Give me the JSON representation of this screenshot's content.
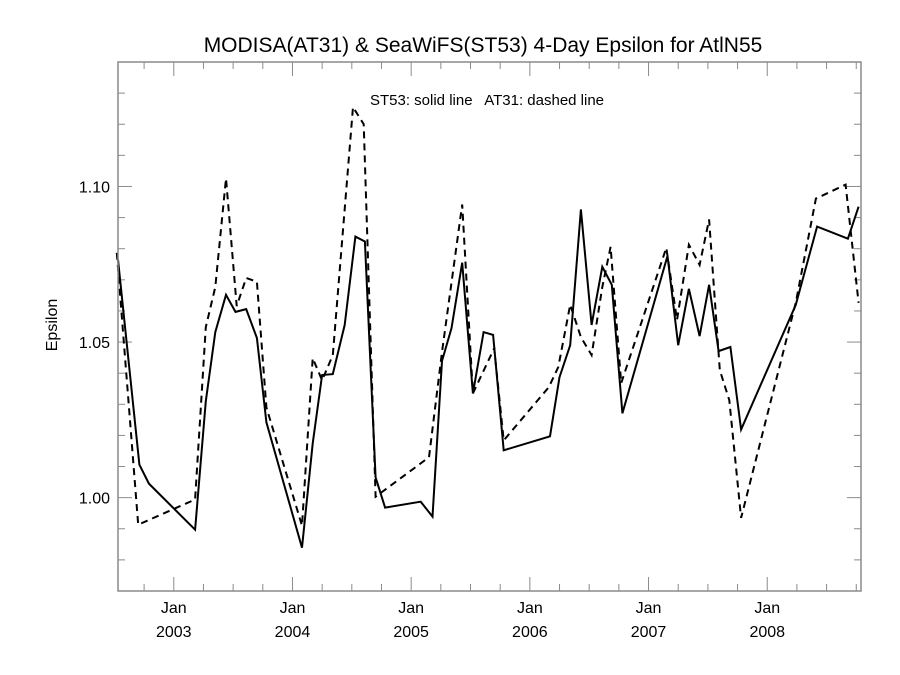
{
  "chart_data": {
    "type": "line",
    "title": "MODISA(AT31) & SeaWiFS(ST53) 4-Day Epsilon for AtlN55",
    "xlabel": "",
    "ylabel": "Epsilon",
    "annotation": "ST53: solid line   AT31: dashed line",
    "xlim": [
      2002.53,
      2008.79
    ],
    "ylim": [
      0.97,
      1.14
    ],
    "x_ticks": [
      {
        "value": 2003,
        "label_top": "Jan",
        "label_bottom": "2003"
      },
      {
        "value": 2004,
        "label_top": "Jan",
        "label_bottom": "2004"
      },
      {
        "value": 2005,
        "label_top": "Jan",
        "label_bottom": "2005"
      },
      {
        "value": 2006,
        "label_top": "Jan",
        "label_bottom": "2006"
      },
      {
        "value": 2007,
        "label_top": "Jan",
        "label_bottom": "2007"
      },
      {
        "value": 2008,
        "label_top": "Jan",
        "label_bottom": "2008"
      }
    ],
    "x_minor_step_years": 0.25,
    "y_ticks": [
      {
        "value": 1.0,
        "label": "1.00"
      },
      {
        "value": 1.05,
        "label": "1.05"
      },
      {
        "value": 1.1,
        "label": "1.10"
      }
    ],
    "y_minor_step": 0.01,
    "grid": false,
    "series": [
      {
        "name": "ST53",
        "style": "solid",
        "x": [
          2002.53,
          2002.71,
          2002.79,
          2003.18,
          2003.27,
          2003.35,
          2003.44,
          2003.52,
          2003.61,
          2003.7,
          2003.78,
          2004.08,
          2004.17,
          2004.25,
          2004.34,
          2004.44,
          2004.53,
          2004.61,
          2004.7,
          2004.78,
          2005.08,
          2005.18,
          2005.26,
          2005.34,
          2005.43,
          2005.52,
          2005.61,
          2005.69,
          2005.78,
          2006.17,
          2006.25,
          2006.34,
          2006.43,
          2006.52,
          2006.61,
          2006.69,
          2006.78,
          2007.16,
          2007.25,
          2007.34,
          2007.43,
          2007.51,
          2007.59,
          2007.69,
          2007.78,
          2008.24,
          2008.42,
          2008.68,
          2008.77
        ],
        "values": [
          1.0765,
          1.0106,
          1.0045,
          0.9897,
          1.031,
          1.0532,
          1.0652,
          1.0597,
          1.0606,
          1.0513,
          1.0242,
          0.9839,
          1.0174,
          1.0394,
          1.0397,
          1.0555,
          1.0839,
          1.0823,
          1.0065,
          0.9968,
          0.9987,
          0.9939,
          1.0439,
          1.0545,
          1.0755,
          1.0335,
          1.0532,
          1.0523,
          1.0152,
          1.0197,
          1.0387,
          1.049,
          1.0926,
          1.0555,
          1.0742,
          1.0684,
          1.0271,
          1.0777,
          1.049,
          1.0671,
          1.0519,
          1.0684,
          1.0471,
          1.0484,
          1.0219,
          1.0619,
          1.0871,
          1.0832,
          1.0935
        ]
      },
      {
        "name": "AT31",
        "style": "dashed",
        "x": [
          2002.52,
          2002.7,
          2003.18,
          2003.27,
          2003.35,
          2003.44,
          2003.53,
          2003.61,
          2003.7,
          2003.78,
          2004.08,
          2004.17,
          2004.25,
          2004.34,
          2004.51,
          2004.6,
          2004.7,
          2005.15,
          2005.26,
          2005.43,
          2005.52,
          2005.7,
          2005.78,
          2006.16,
          2006.24,
          2006.34,
          2006.43,
          2006.52,
          2006.61,
          2006.68,
          2006.77,
          2007.15,
          2007.24,
          2007.34,
          2007.43,
          2007.51,
          2007.6,
          2007.68,
          2007.78,
          2008.24,
          2008.41,
          2008.66,
          2008.77
        ],
        "values": [
          1.0787,
          0.9913,
          0.9994,
          1.0548,
          1.0677,
          1.1026,
          1.0616,
          1.0706,
          1.0694,
          1.029,
          0.991,
          1.0448,
          1.0377,
          1.0458,
          1.1255,
          1.12,
          1.0003,
          1.013,
          1.0468,
          1.0942,
          1.0335,
          1.048,
          1.0184,
          1.0355,
          1.042,
          1.062,
          1.0516,
          1.0458,
          1.0677,
          1.0806,
          1.0368,
          1.0803,
          1.0571,
          1.0813,
          1.0748,
          1.0894,
          1.041,
          1.0313,
          0.9935,
          1.0626,
          1.0961,
          1.1006,
          1.0626
        ]
      }
    ]
  }
}
